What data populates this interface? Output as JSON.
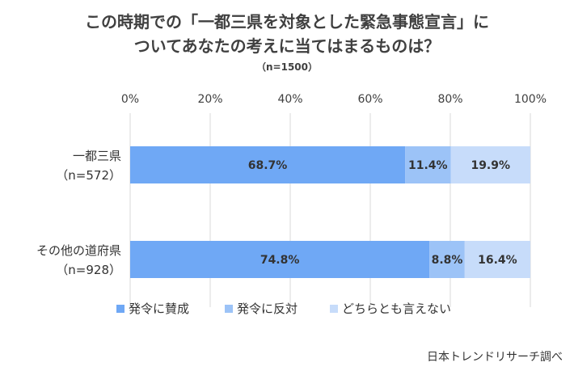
{
  "title_line1": "この時期での「一都三県を対象とした緊急事態宣言」に",
  "title_line2": "ついてあなたの考えに当てはまるものは？",
  "subtitle": "（n=1500）",
  "footer": "日本トレンドリサーチ調べ",
  "chart_data": {
    "type": "bar",
    "orientation": "horizontal",
    "stacked": true,
    "xlim": [
      0,
      100
    ],
    "xticks": [
      "0%",
      "20%",
      "40%",
      "60%",
      "80%",
      "100%"
    ],
    "categories": [
      {
        "line1": "一都三県",
        "line2": "（n=572）"
      },
      {
        "line1": "その他の道府県",
        "line2": "（n=928）"
      }
    ],
    "series": [
      {
        "name": "発令に賛成",
        "values": [
          68.7,
          74.8
        ],
        "labels": [
          "68.7%",
          "74.8%"
        ],
        "color": "#6fa8f5"
      },
      {
        "name": "発令に反対",
        "values": [
          11.4,
          8.8
        ],
        "labels": [
          "11.4%",
          "8.8%"
        ],
        "color": "#9cc3f7"
      },
      {
        "name": "どちらとも言えない",
        "values": [
          19.9,
          16.4
        ],
        "labels": [
          "19.9%",
          "16.4%"
        ],
        "color": "#c7dcfa"
      }
    ],
    "grid": true,
    "legend": "bottom"
  }
}
